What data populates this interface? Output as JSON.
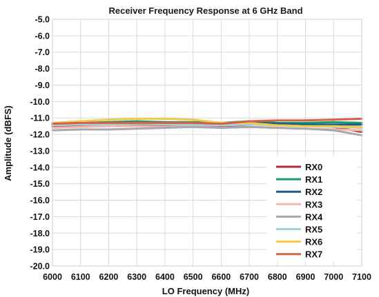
{
  "chart_data": {
    "type": "line",
    "title": "Receiver Frequency Response at 6 GHz Band",
    "xlabel": "LO Frequency (MHz)",
    "ylabel": "Amplitude (dBFS)",
    "xlim": [
      6000,
      7100
    ],
    "ylim": [
      -20.0,
      -5.0
    ],
    "xticks": [
      "6000",
      "6100",
      "6200",
      "6300",
      "6400",
      "6500",
      "6600",
      "6700",
      "6800",
      "6900",
      "7000",
      "7100"
    ],
    "yticks": [
      "-5.0",
      "-6.0",
      "-7.0",
      "-8.0",
      "-9.0",
      "-10.0",
      "-11.0",
      "-12.0",
      "-13.0",
      "-14.0",
      "-15.0",
      "-16.0",
      "-17.0",
      "-18.0",
      "-19.0",
      "-20.0"
    ],
    "grid": true,
    "legend_position": "bottom-right",
    "x": [
      6000,
      6100,
      6200,
      6300,
      6400,
      6500,
      6600,
      6700,
      6800,
      6900,
      7000,
      7100
    ],
    "series": [
      {
        "name": "RX0",
        "color": "#b0263e",
        "values": [
          -11.5,
          -11.5,
          -11.45,
          -11.45,
          -11.5,
          -11.45,
          -11.55,
          -11.4,
          -11.4,
          -11.45,
          -11.55,
          -11.85
        ]
      },
      {
        "name": "RX1",
        "color": "#1a9a70",
        "values": [
          -11.35,
          -11.3,
          -11.25,
          -11.2,
          -11.25,
          -11.25,
          -11.3,
          -11.2,
          -11.3,
          -11.3,
          -11.25,
          -11.3
        ]
      },
      {
        "name": "RX2",
        "color": "#1e5a86",
        "values": [
          -11.4,
          -11.35,
          -11.3,
          -11.3,
          -11.35,
          -11.3,
          -11.4,
          -11.3,
          -11.35,
          -11.4,
          -11.4,
          -11.4
        ]
      },
      {
        "name": "RX3",
        "color": "#f2b8a8",
        "values": [
          -11.6,
          -11.55,
          -11.5,
          -11.5,
          -11.55,
          -11.5,
          -11.6,
          -11.55,
          -11.6,
          -11.65,
          -11.7,
          -11.75
        ]
      },
      {
        "name": "RX4",
        "color": "#a8a7b0",
        "values": [
          -11.75,
          -11.7,
          -11.7,
          -11.65,
          -11.6,
          -11.55,
          -11.6,
          -11.55,
          -11.6,
          -11.65,
          -11.75,
          -12.05
        ]
      },
      {
        "name": "RX5",
        "color": "#9fd3dc",
        "values": [
          -11.45,
          -11.4,
          -11.4,
          -11.35,
          -11.4,
          -11.4,
          -11.45,
          -11.4,
          -11.45,
          -11.5,
          -11.55,
          -11.6
        ]
      },
      {
        "name": "RX6",
        "color": "#f2c84b",
        "values": [
          -11.3,
          -11.2,
          -11.1,
          -11.05,
          -11.05,
          -11.1,
          -11.3,
          -11.3,
          -11.45,
          -11.5,
          -11.5,
          -11.55
        ]
      },
      {
        "name": "RX7",
        "color": "#d95f45",
        "values": [
          -11.35,
          -11.3,
          -11.3,
          -11.3,
          -11.3,
          -11.3,
          -11.35,
          -11.2,
          -11.15,
          -11.15,
          -11.1,
          -11.05
        ]
      }
    ]
  }
}
